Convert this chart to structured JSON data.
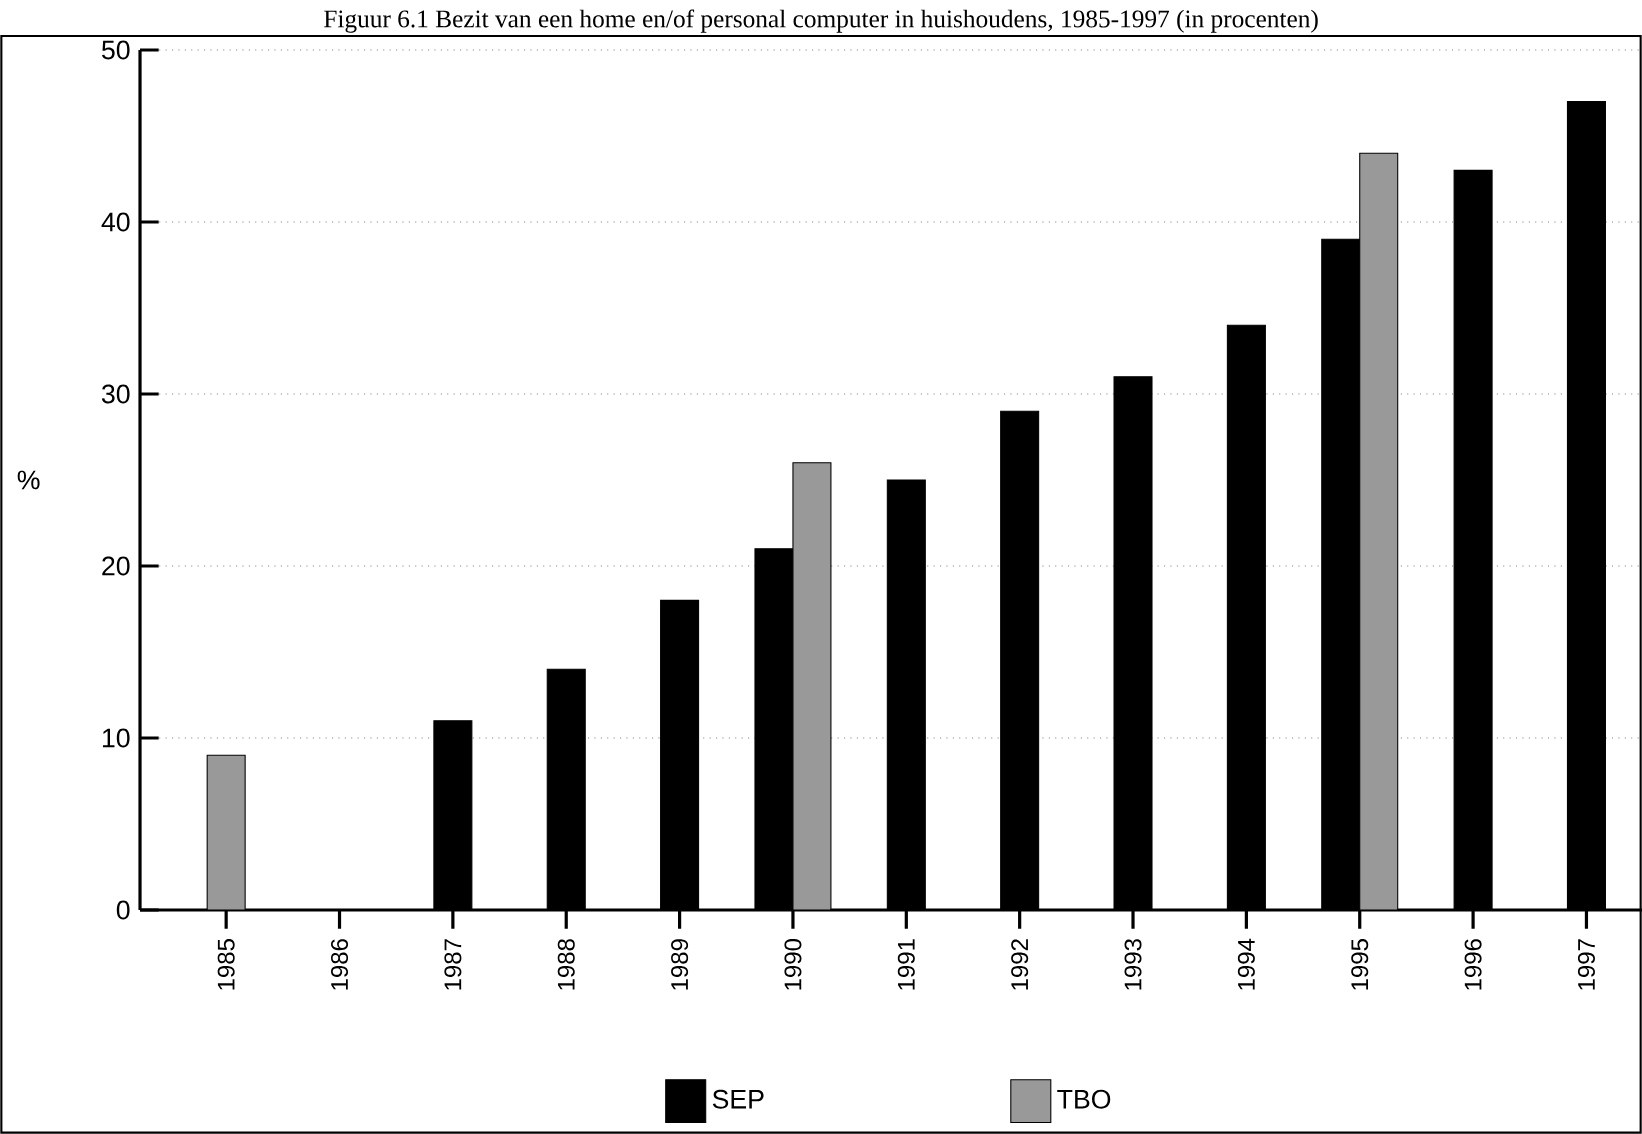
{
  "chart_data": {
    "type": "bar",
    "title": "Figuur 6.1 Bezit van een home en/of personal computer in huishoudens, 1985-1997 (in procenten)",
    "ylabel": "%",
    "categories": [
      "1985",
      "1986",
      "1987",
      "1988",
      "1989",
      "1990",
      "1991",
      "1992",
      "1993",
      "1994",
      "1995",
      "1996",
      "1997"
    ],
    "series": [
      {
        "name": "SEP",
        "color": "#000000",
        "values": [
          null,
          null,
          11,
          14,
          18,
          21,
          25,
          29,
          31,
          34,
          39,
          43,
          47
        ]
      },
      {
        "name": "TBO",
        "color": "#999999",
        "values": [
          9,
          null,
          null,
          null,
          null,
          26,
          null,
          null,
          null,
          null,
          44,
          null,
          null
        ]
      }
    ],
    "ylim": [
      0,
      50
    ],
    "yticks": [
      0,
      10,
      20,
      30,
      40,
      50
    ],
    "grid": "y",
    "legend": "bottom"
  }
}
